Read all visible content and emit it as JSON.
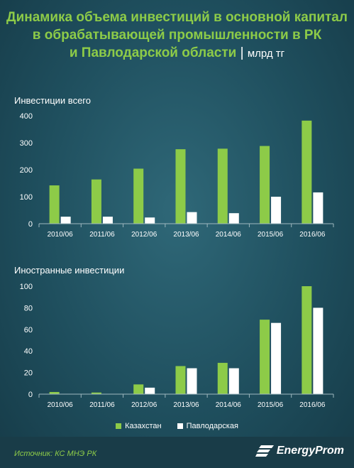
{
  "title": {
    "line1": "Динамика объема инвестиций в основной капитал",
    "line2": "в обрабатывающей промышленности в РК",
    "line3": "и Павлодарской области",
    "separator": "|",
    "units": "млрд тг"
  },
  "colors": {
    "kazakhstan": "#8dcb48",
    "pavlodar": "#ffffff",
    "text": "#ffffff"
  },
  "chart_data": [
    {
      "type": "bar",
      "title": "Инвестиции всего",
      "categories": [
        "2010/06",
        "2011/06",
        "2012/06",
        "2013/06",
        "2014/06",
        "2015/06",
        "2016/06"
      ],
      "series": [
        {
          "name": "Казахстан",
          "values": [
            142,
            164,
            204,
            276,
            278,
            288,
            382
          ]
        },
        {
          "name": "Павлодарская",
          "values": [
            26,
            26,
            23,
            43,
            39,
            100,
            116
          ]
        }
      ],
      "yticks": [
        0,
        100,
        200,
        300,
        400
      ],
      "ylim": [
        0,
        400
      ],
      "grid": false
    },
    {
      "type": "bar",
      "title": "Иностранные инвестиции",
      "categories": [
        "2010/06",
        "2011/06",
        "2012/06",
        "2013/06",
        "2014/06",
        "2015/06",
        "2016/06"
      ],
      "series": [
        {
          "name": "Казахстан",
          "values": [
            2,
            1.5,
            9,
            26,
            29,
            69,
            100
          ]
        },
        {
          "name": "Павлодарская",
          "values": [
            0,
            0,
            6,
            24,
            24,
            66,
            80
          ]
        }
      ],
      "yticks": [
        0,
        20,
        40,
        60,
        80,
        100
      ],
      "ylim": [
        0,
        100
      ],
      "grid": false
    }
  ],
  "legend": {
    "items": [
      "Казахстан",
      "Павлодарская"
    ]
  },
  "footer": {
    "source": "Источник: КС МНЭ РК",
    "brand": "EnergyProm"
  }
}
